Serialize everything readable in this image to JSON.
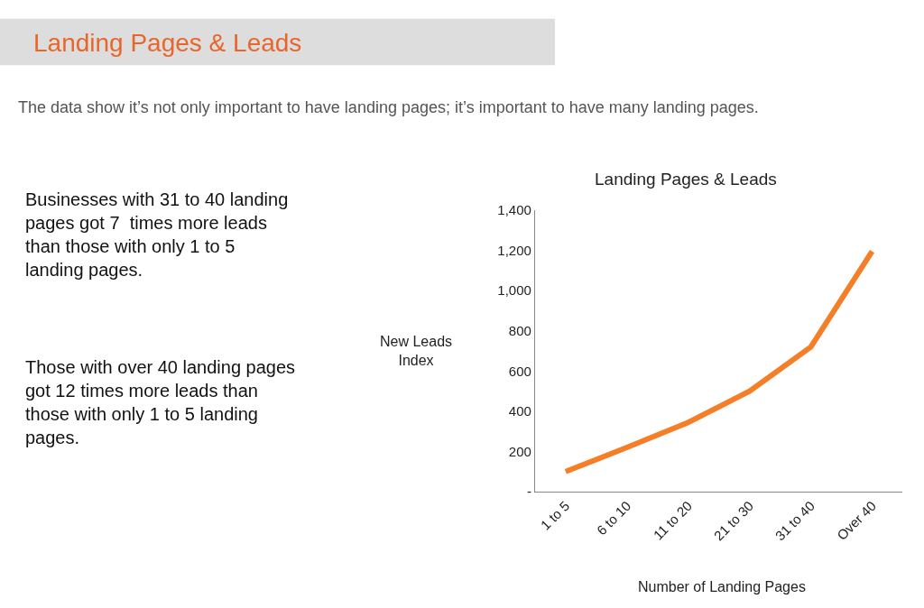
{
  "chart_data": {
    "type": "line",
    "title": "Landing Pages & Leads",
    "xlabel": "Number of Landing Pages",
    "ylabel": "New Leads Index",
    "categories": [
      "1 to 5",
      "6 to 10",
      "11 to 20",
      "21 to 30",
      "31 to 40",
      "Over 40"
    ],
    "series": [
      {
        "color": "#f57f29",
        "values": [
          100,
          220,
          345,
          500,
          720,
          1195
        ]
      }
    ],
    "ylim": [
      0,
      1400
    ],
    "yticks": [
      {
        "value": 0,
        "label": "-"
      },
      200,
      400,
      600,
      800,
      {
        "value": 1000,
        "label": "1,000"
      },
      {
        "value": 1200,
        "label": "1,200"
      },
      {
        "value": 1400,
        "label": "1,400"
      }
    ],
    "marker": "none",
    "line_style": "solid",
    "annotations": [
      "Landing Pages & Leads",
      "The data show it’s not only important to have landing pages; it’s important to have many landing pages.",
      "Businesses with 31 to 40 landing pages got 7  times more leads than those with only 1 to 5 landing pages.",
      "Those with over 40 landing pages got 12 times more leads than those with only 1 to 5 landing pages."
    ]
  }
}
